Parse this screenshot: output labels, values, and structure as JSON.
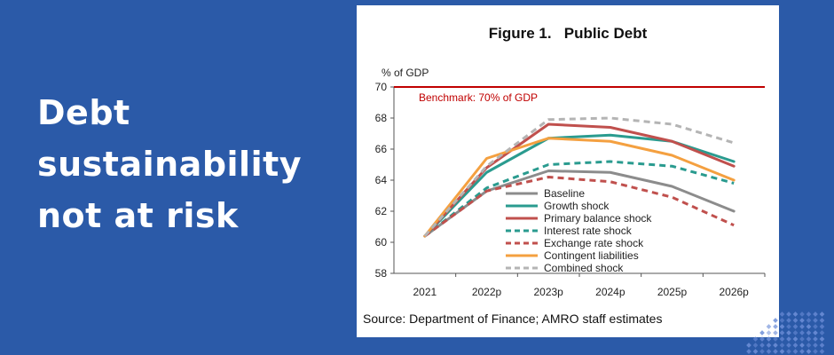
{
  "headline": {
    "lines": [
      "Debt",
      "sustainability",
      "not at risk"
    ]
  },
  "colors": {
    "background": "#2b5aa8",
    "benchmark": "#c00000",
    "decor_dots": "#6f8fd8"
  },
  "chart_data": {
    "type": "line",
    "title": "Figure 1.   Public Debt",
    "ylabel": "% of GDP",
    "xlabel": "",
    "source": "Source: Department of Finance; AMRO staff estimates",
    "ylim": [
      58,
      70
    ],
    "yticks": [
      58,
      60,
      62,
      64,
      66,
      68,
      70
    ],
    "categories": [
      "2021",
      "2022p",
      "2023p",
      "2024p",
      "2025p",
      "2026p"
    ],
    "benchmark": {
      "label": "Benchmark: 70% of GDP",
      "value": 70,
      "color": "#c00000"
    },
    "grid": false,
    "legend_position": "inside-lower-center",
    "series": [
      {
        "name": "Baseline",
        "color": "#8c8c8c",
        "dash": "solid",
        "values": [
          60.4,
          63.3,
          64.6,
          64.5,
          63.6,
          62.0
        ]
      },
      {
        "name": "Growth shock",
        "color": "#2a9b8f",
        "dash": "solid",
        "values": [
          60.4,
          64.5,
          66.7,
          66.9,
          66.5,
          65.2
        ]
      },
      {
        "name": "Primary balance shock",
        "color": "#c0504d",
        "dash": "solid",
        "values": [
          60.4,
          64.8,
          67.6,
          67.4,
          66.5,
          64.9
        ]
      },
      {
        "name": "Interest rate shock",
        "color": "#2a9b8f",
        "dash": "dashed",
        "values": [
          60.4,
          63.5,
          65.0,
          65.2,
          64.9,
          63.8
        ]
      },
      {
        "name": "Exchange rate shock",
        "color": "#c0504d",
        "dash": "dashed",
        "values": [
          60.4,
          63.3,
          64.2,
          63.9,
          62.9,
          61.1
        ]
      },
      {
        "name": "Contingent liabilities",
        "color": "#f4a040",
        "dash": "solid",
        "values": [
          60.4,
          65.4,
          66.7,
          66.5,
          65.6,
          64.0
        ]
      },
      {
        "name": "Combined shock",
        "color": "#b4b4b4",
        "dash": "dashed",
        "values": [
          60.4,
          64.9,
          67.9,
          68.0,
          67.6,
          66.4
        ]
      }
    ]
  }
}
